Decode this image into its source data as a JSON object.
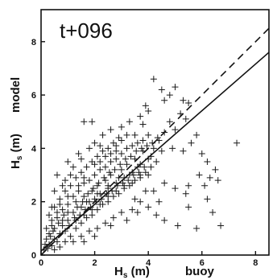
{
  "chart_data": {
    "type": "scatter",
    "title": "t+096",
    "xlabel": {
      "base": "H",
      "sub": "s",
      "unit": " (m)",
      "tag": "buoy"
    },
    "ylabel": {
      "base": "H",
      "sub": "s",
      "unit": " (m)",
      "tag": "model"
    },
    "xlim": [
      0,
      8.5
    ],
    "ylim": [
      0,
      9.2
    ],
    "xticks": [
      0,
      2,
      4,
      6,
      8
    ],
    "yticks": [
      0,
      2,
      4,
      6,
      8
    ],
    "grid": false,
    "marker": "plus",
    "lines": [
      {
        "style": "dashed",
        "from": [
          0,
          0
        ],
        "to": [
          8.5,
          8.5
        ]
      },
      {
        "style": "solid",
        "from": [
          0,
          0.15
        ],
        "to": [
          8.5,
          7.6
        ]
      }
    ],
    "points": [
      [
        0.1,
        0.2
      ],
      [
        0.2,
        0.3
      ],
      [
        0.3,
        0.4
      ],
      [
        0.4,
        0.35
      ],
      [
        0.5,
        0.6
      ],
      [
        0.6,
        0.5
      ],
      [
        0.2,
        0.6
      ],
      [
        0.3,
        0.8
      ],
      [
        0.5,
        1.0
      ],
      [
        0.7,
        0.8
      ],
      [
        0.8,
        1.1
      ],
      [
        0.9,
        0.9
      ],
      [
        1.0,
        1.3
      ],
      [
        0.4,
        1.1
      ],
      [
        0.6,
        1.4
      ],
      [
        0.8,
        1.7
      ],
      [
        1.0,
        1.9
      ],
      [
        1.2,
        1.6
      ],
      [
        1.3,
        2.0
      ],
      [
        1.5,
        1.8
      ],
      [
        1.6,
        2.2
      ],
      [
        1.8,
        2.0
      ],
      [
        1.9,
        2.4
      ],
      [
        2.0,
        2.1
      ],
      [
        2.1,
        2.6
      ],
      [
        2.2,
        2.3
      ],
      [
        2.4,
        2.8
      ],
      [
        2.5,
        2.5
      ],
      [
        2.6,
        3.0
      ],
      [
        2.8,
        2.7
      ],
      [
        3.0,
        3.2
      ],
      [
        3.1,
        2.9
      ],
      [
        3.2,
        3.4
      ],
      [
        3.4,
        3.1
      ],
      [
        3.5,
        3.6
      ],
      [
        3.6,
        3.3
      ],
      [
        3.8,
        3.9
      ],
      [
        4.0,
        3.6
      ],
      [
        4.2,
        4.0
      ],
      [
        4.4,
        4.3
      ],
      [
        4.6,
        4.6
      ],
      [
        4.8,
        5.0
      ],
      [
        5.0,
        4.7
      ],
      [
        5.2,
        5.3
      ],
      [
        5.4,
        5.1
      ],
      [
        1.1,
        0.7
      ],
      [
        1.3,
        1.0
      ],
      [
        1.5,
        1.2
      ],
      [
        1.7,
        1.4
      ],
      [
        1.9,
        1.5
      ],
      [
        2.1,
        1.7
      ],
      [
        2.3,
        1.9
      ],
      [
        2.5,
        2.0
      ],
      [
        2.7,
        2.2
      ],
      [
        2.9,
        2.3
      ],
      [
        3.1,
        2.5
      ],
      [
        3.3,
        2.6
      ],
      [
        3.5,
        2.8
      ],
      [
        3.7,
        3.0
      ],
      [
        3.9,
        3.1
      ],
      [
        4.1,
        3.3
      ],
      [
        4.3,
        3.5
      ],
      [
        0.3,
        1.5
      ],
      [
        0.5,
        1.8
      ],
      [
        0.7,
        2.1
      ],
      [
        0.9,
        2.4
      ],
      [
        1.1,
        2.6
      ],
      [
        1.3,
        2.9
      ],
      [
        1.5,
        3.1
      ],
      [
        1.7,
        3.3
      ],
      [
        1.9,
        3.5
      ],
      [
        2.1,
        3.7
      ],
      [
        2.3,
        3.9
      ],
      [
        2.5,
        4.0
      ],
      [
        2.7,
        4.2
      ],
      [
        2.9,
        4.4
      ],
      [
        0.2,
        1.0
      ],
      [
        0.4,
        1.3
      ],
      [
        0.6,
        1.6
      ],
      [
        0.8,
        1.3
      ],
      [
        1.0,
        1.6
      ],
      [
        1.2,
        2.2
      ],
      [
        1.4,
        2.4
      ],
      [
        1.6,
        2.7
      ],
      [
        1.8,
        2.8
      ],
      [
        2.0,
        3.0
      ],
      [
        2.2,
        3.2
      ],
      [
        2.4,
        3.3
      ],
      [
        2.6,
        3.5
      ],
      [
        2.8,
        3.6
      ],
      [
        3.0,
        3.8
      ],
      [
        3.2,
        4.0
      ],
      [
        3.4,
        4.1
      ],
      [
        3.6,
        4.2
      ],
      [
        3.8,
        4.3
      ],
      [
        4.0,
        4.5
      ],
      [
        0.9,
        2.8
      ],
      [
        1.2,
        3.3
      ],
      [
        1.5,
        3.6
      ],
      [
        1.8,
        4.0
      ],
      [
        2.0,
        4.2
      ],
      [
        2.3,
        4.5
      ],
      [
        2.6,
        4.7
      ],
      [
        3.0,
        4.8
      ],
      [
        3.3,
        5.0
      ],
      [
        3.7,
        5.2
      ],
      [
        4.0,
        5.4
      ],
      [
        4.2,
        6.6
      ],
      [
        4.5,
        6.2
      ],
      [
        4.8,
        6.0
      ],
      [
        5.0,
        6.3
      ],
      [
        5.3,
        5.8
      ],
      [
        5.5,
        5.7
      ],
      [
        4.6,
        5.8
      ],
      [
        3.9,
        5.6
      ],
      [
        1.6,
        5.0
      ],
      [
        1.9,
        5.0
      ],
      [
        3.8,
        4.9
      ],
      [
        3.2,
        4.5
      ],
      [
        3.5,
        4.5
      ],
      [
        1.4,
        3.8
      ],
      [
        0.6,
        3.0
      ],
      [
        2.2,
        4.1
      ],
      [
        2.8,
        3.9
      ],
      [
        1.0,
        3.5
      ],
      [
        1.7,
        2.0
      ],
      [
        2.1,
        2.3
      ],
      [
        2.5,
        2.6
      ],
      [
        2.9,
        2.9
      ],
      [
        3.3,
        3.0
      ],
      [
        3.7,
        3.4
      ],
      [
        4.1,
        3.7
      ],
      [
        4.5,
        3.9
      ],
      [
        4.9,
        4.0
      ],
      [
        5.3,
        3.9
      ],
      [
        5.6,
        4.2
      ],
      [
        5.8,
        4.5
      ],
      [
        6.0,
        3.8
      ],
      [
        6.2,
        3.5
      ],
      [
        6.5,
        3.2
      ],
      [
        7.3,
        4.2
      ],
      [
        5.9,
        3.0
      ],
      [
        6.3,
        2.9
      ],
      [
        6.6,
        2.8
      ],
      [
        5.5,
        2.6
      ],
      [
        6.1,
        2.6
      ],
      [
        5.0,
        2.5
      ],
      [
        5.4,
        2.3
      ],
      [
        6.2,
        2.1
      ],
      [
        5.5,
        1.8
      ],
      [
        6.4,
        1.6
      ],
      [
        6.7,
        1.1
      ],
      [
        5.8,
        1.0
      ],
      [
        5.1,
        1.1
      ],
      [
        4.6,
        1.3
      ],
      [
        4.3,
        1.5
      ],
      [
        4.0,
        1.8
      ],
      [
        3.7,
        2.0
      ],
      [
        3.4,
        1.7
      ],
      [
        3.0,
        1.6
      ],
      [
        2.7,
        1.4
      ],
      [
        2.4,
        1.2
      ],
      [
        2.1,
        1.0
      ],
      [
        1.8,
        0.9
      ],
      [
        1.5,
        0.7
      ],
      [
        1.2,
        0.5
      ],
      [
        0.9,
        0.5
      ],
      [
        0.7,
        0.3
      ],
      [
        0.5,
        0.2
      ],
      [
        1.6,
        0.5
      ],
      [
        2.0,
        0.7
      ],
      [
        2.6,
        1.1
      ],
      [
        3.2,
        1.3
      ],
      [
        3.6,
        1.6
      ],
      [
        4.2,
        2.4
      ],
      [
        4.6,
        2.7
      ],
      [
        4.4,
        2.0
      ],
      [
        3.9,
        2.4
      ],
      [
        3.5,
        2.1
      ],
      [
        0.15,
        0.4
      ],
      [
        0.35,
        0.7
      ],
      [
        0.25,
        0.25
      ],
      [
        0.45,
        0.9
      ],
      [
        0.65,
        1.2
      ],
      [
        0.85,
        1.5
      ],
      [
        1.05,
        1.1
      ],
      [
        1.25,
        1.4
      ],
      [
        1.45,
        1.5
      ],
      [
        1.65,
        1.7
      ],
      [
        1.85,
        1.8
      ],
      [
        2.05,
        2.0
      ],
      [
        2.25,
        2.1
      ],
      [
        2.45,
        2.3
      ],
      [
        2.65,
        2.4
      ],
      [
        2.85,
        2.6
      ],
      [
        3.05,
        2.7
      ],
      [
        3.25,
        2.8
      ],
      [
        3.45,
        3.0
      ],
      [
        3.65,
        3.1
      ],
      [
        3.85,
        3.3
      ],
      [
        1.35,
        1.8
      ],
      [
        1.55,
        2.0
      ],
      [
        1.75,
        2.3
      ],
      [
        1.95,
        2.5
      ],
      [
        2.15,
        2.7
      ],
      [
        2.35,
        2.9
      ],
      [
        2.55,
        3.1
      ],
      [
        2.75,
        3.2
      ],
      [
        2.95,
        3.4
      ],
      [
        3.15,
        3.6
      ],
      [
        3.35,
        3.7
      ],
      [
        3.55,
        3.9
      ],
      [
        3.75,
        4.0
      ],
      [
        3.95,
        4.1
      ],
      [
        4.15,
        4.2
      ],
      [
        4.35,
        4.4
      ],
      [
        1.4,
        2.6
      ],
      [
        1.6,
        2.9
      ],
      [
        2.0,
        3.4
      ],
      [
        2.2,
        3.5
      ],
      [
        2.4,
        3.7
      ],
      [
        2.6,
        3.8
      ],
      [
        2.8,
        4.1
      ],
      [
        3.0,
        4.3
      ],
      [
        0.5,
        2.4
      ],
      [
        0.8,
        2.6
      ],
      [
        1.1,
        3.0
      ],
      [
        0.4,
        1.8
      ],
      [
        0.7,
        1.9
      ],
      [
        1.0,
        2.2
      ],
      [
        1.3,
        1.3
      ],
      [
        1.6,
        1.5
      ],
      [
        1.9,
        1.7
      ],
      [
        2.2,
        1.9
      ],
      [
        2.5,
        2.2
      ],
      [
        2.8,
        2.4
      ],
      [
        3.1,
        2.6
      ],
      [
        3.4,
        2.7
      ],
      [
        3.7,
        2.9
      ],
      [
        4.0,
        3.0
      ]
    ]
  }
}
